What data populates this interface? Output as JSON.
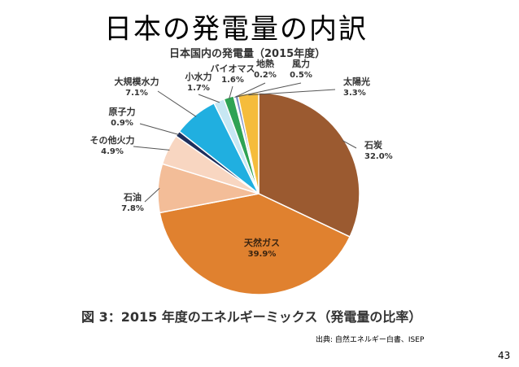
{
  "slide": {
    "title": "日本の発電量の内訳",
    "caption": "図 3：2015 年度のエネルギーミックス（発電量の比率）",
    "source": "出典: 自然エネルギー白書、ISEP",
    "page_number": "43"
  },
  "chart_data": {
    "type": "pie",
    "title": "日本国内の発電量（2015年度）",
    "slices": [
      {
        "name": "石炭",
        "value": 32.0,
        "label": "32.0%",
        "color": "#9b5a30"
      },
      {
        "name": "天然ガス",
        "value": 39.9,
        "label": "39.9%",
        "color": "#e0812f"
      },
      {
        "name": "石油",
        "value": 7.8,
        "label": "7.8%",
        "color": "#f3bd98"
      },
      {
        "name": "その他火力",
        "value": 4.9,
        "label": "4.9%",
        "color": "#f8d6c1"
      },
      {
        "name": "原子力",
        "value": 0.9,
        "label": "0.9%",
        "color": "#1e2f5c"
      },
      {
        "name": "大規模水力",
        "value": 7.1,
        "label": "7.1%",
        "color": "#20afe0"
      },
      {
        "name": "小水力",
        "value": 1.7,
        "label": "1.7%",
        "color": "#c7e7f3"
      },
      {
        "name": "バイオマス",
        "value": 1.6,
        "label": "1.6%",
        "color": "#2ea354"
      },
      {
        "name": "地熱",
        "value": 0.2,
        "label": "0.2%",
        "color": "#8a4f9e"
      },
      {
        "name": "風力",
        "value": 0.5,
        "label": "0.5%",
        "color": "#7a8ec8"
      },
      {
        "name": "太陽光",
        "value": 3.3,
        "label": "3.3%",
        "color": "#f5bc3c"
      }
    ]
  }
}
